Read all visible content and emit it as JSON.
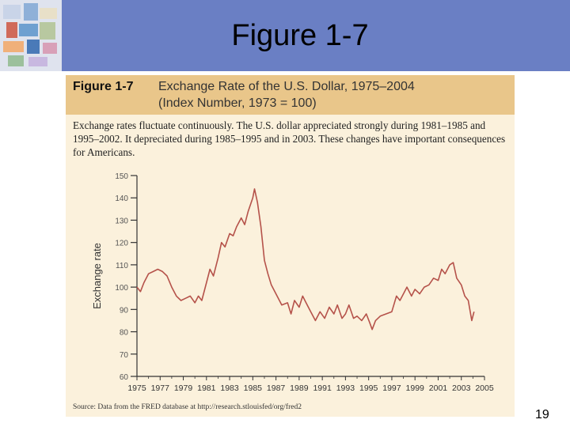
{
  "slide": {
    "title": "Figure 1-7",
    "page_number": "19"
  },
  "figure": {
    "label": "Figure 1-7",
    "title_line1": "Exchange Rate of the U.S. Dollar, 1975–2004",
    "title_line2": "(Index Number, 1973 = 100)",
    "caption": "Exchange rates fluctuate continuously. The U.S. dollar appreciated strongly during 1981–1985 and 1995–2002. It depreciated during 1985–1995 and in 2003. These changes have important consequences for Americans.",
    "source": "Source: Data from the FRED database at http://research.stlouisfed/org/fred2"
  },
  "colors": {
    "title_bar": "#6a7fc4",
    "header_band": "#e9c68a",
    "figure_bg": "#fbf1dc",
    "line": "#b5524a"
  },
  "chart_data": {
    "type": "line",
    "title": "Exchange Rate of the U.S. Dollar, 1975–2004",
    "xlabel": "",
    "ylabel": "Exchange rate",
    "xlim": [
      1975,
      2005
    ],
    "ylim": [
      60,
      150
    ],
    "x_ticks": [
      "1975",
      "1977",
      "1979",
      "1981",
      "1983",
      "1985",
      "1987",
      "1989",
      "1991",
      "1993",
      "1995",
      "1997",
      "1999",
      "2001",
      "2003",
      "2005"
    ],
    "y_ticks": [
      "60",
      "70",
      "80",
      "90",
      "100",
      "110",
      "120",
      "130",
      "140",
      "150"
    ],
    "grid": false,
    "series": [
      {
        "name": "Exchange rate",
        "x": [
          1975.0,
          1975.3,
          1975.6,
          1976.0,
          1976.4,
          1976.8,
          1977.2,
          1977.6,
          1978.0,
          1978.4,
          1978.8,
          1979.2,
          1979.6,
          1980.0,
          1980.3,
          1980.6,
          1981.0,
          1981.3,
          1981.6,
          1982.0,
          1982.3,
          1982.6,
          1983.0,
          1983.3,
          1983.6,
          1984.0,
          1984.3,
          1984.6,
          1985.0,
          1985.15,
          1985.4,
          1985.7,
          1986.0,
          1986.3,
          1986.6,
          1987.0,
          1987.5,
          1988.0,
          1988.3,
          1988.6,
          1989.0,
          1989.3,
          1989.6,
          1990.0,
          1990.4,
          1990.8,
          1991.2,
          1991.6,
          1992.0,
          1992.3,
          1992.7,
          1993.0,
          1993.3,
          1993.7,
          1994.0,
          1994.4,
          1994.8,
          1995.1,
          1995.3,
          1995.6,
          1996.0,
          1996.5,
          1997.0,
          1997.4,
          1997.7,
          1998.0,
          1998.3,
          1998.7,
          1999.0,
          1999.4,
          1999.8,
          2000.2,
          2000.6,
          2001.0,
          2001.3,
          2001.6,
          2002.0,
          2002.3,
          2002.6,
          2003.0,
          2003.3,
          2003.6,
          2003.9,
          2004.1
        ],
        "values": [
          100,
          98,
          102,
          106,
          107,
          108,
          107,
          105,
          100,
          96,
          94,
          95,
          96,
          93,
          96,
          94,
          102,
          108,
          105,
          113,
          120,
          118,
          124,
          123,
          127,
          131,
          128,
          134,
          140,
          144,
          138,
          127,
          112,
          106,
          101,
          97,
          92,
          93,
          88,
          94,
          91,
          96,
          93,
          89,
          85,
          89,
          86,
          91,
          88,
          92,
          86,
          88,
          92,
          86,
          87,
          85,
          88,
          84,
          81,
          85,
          87,
          88,
          89,
          96,
          94,
          97,
          100,
          96,
          99,
          97,
          100,
          101,
          104,
          103,
          108,
          106,
          110,
          111,
          104,
          101,
          96,
          94,
          85,
          89
        ]
      }
    ]
  }
}
